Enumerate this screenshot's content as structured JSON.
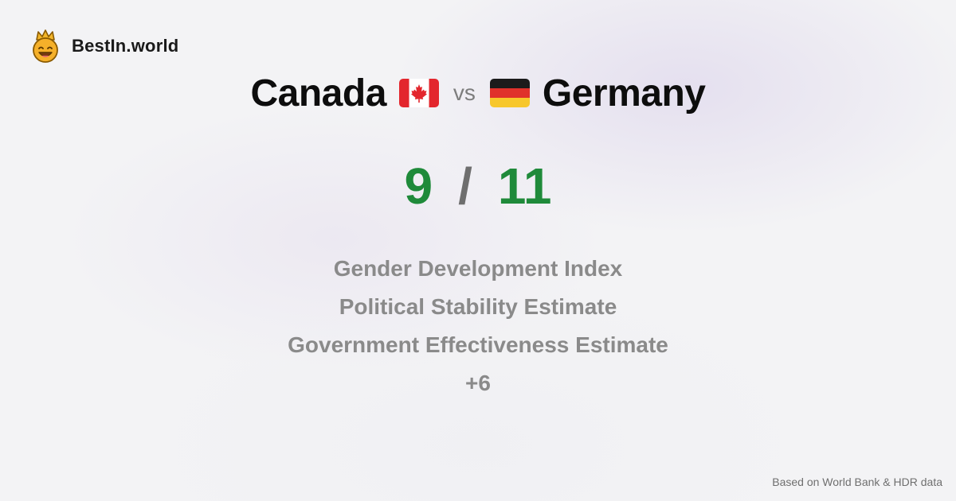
{
  "brand": {
    "name": "BestIn.world",
    "logo_icon": "crown-smiley-icon"
  },
  "title": {
    "left_country": "Canada",
    "vs": "vs",
    "right_country": "Germany",
    "left_flag_icon": "canada-flag-icon",
    "right_flag_icon": "germany-flag-icon"
  },
  "score": {
    "left": "9",
    "separator": "/",
    "right": "11",
    "color": "#1f8a3a"
  },
  "metrics": [
    "Gender Development Index",
    "Political Stability Estimate",
    "Government Effectiveness Estimate",
    "+6"
  ],
  "footer": {
    "source": "Based on World Bank & HDR data"
  }
}
